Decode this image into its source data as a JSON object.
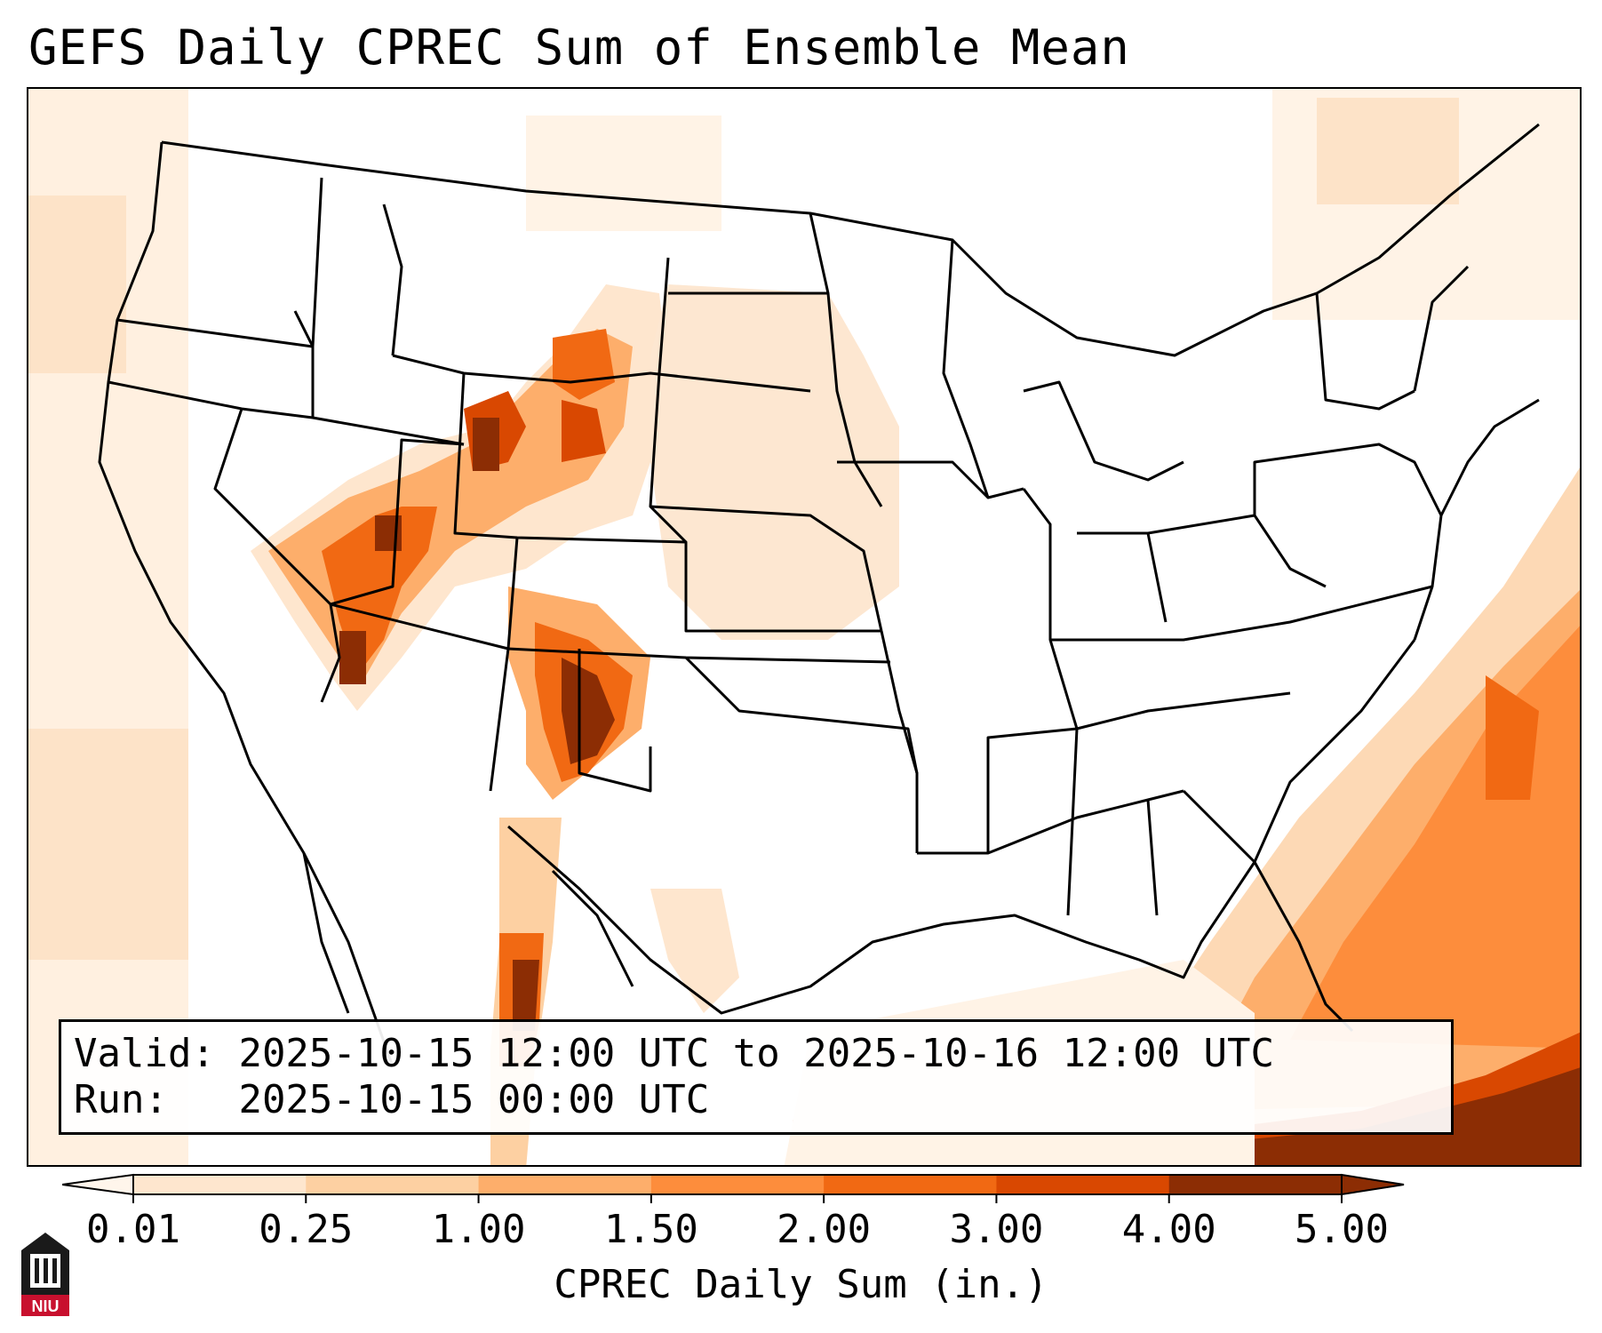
{
  "title": "GEFS Daily CPREC Sum of Ensemble Mean",
  "info": {
    "valid_label": "Valid:",
    "valid_value": "2025-10-15 12:00 UTC to 2025-10-16 12:00 UTC",
    "run_label": "Run:",
    "run_value": "2025-10-15 00:00 UTC"
  },
  "colorbar": {
    "label": "CPREC Daily Sum (in.)",
    "ticks": [
      "0.01",
      "0.25",
      "1.00",
      "1.50",
      "2.00",
      "3.00",
      "4.00",
      "5.00"
    ],
    "colors": [
      "#fff5eb",
      "#fee6ce",
      "#fdd0a2",
      "#fdae6b",
      "#fd8d3c",
      "#f16913",
      "#d94801",
      "#8c2d04"
    ],
    "extend": "both"
  },
  "logo": {
    "text": "NIU",
    "color": "#c8102e"
  },
  "map": {
    "region": "Continental United States",
    "projection": "Lambert Conformal",
    "precip_color_scale": "Oranges"
  }
}
